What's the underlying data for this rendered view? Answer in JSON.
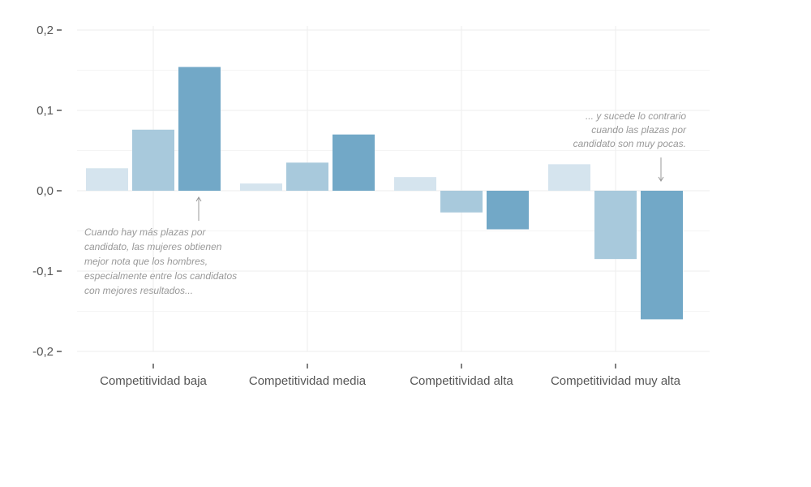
{
  "chart_data": {
    "type": "bar",
    "categories": [
      "Competitividad baja",
      "Competitividad media",
      "Competitividad alta",
      "Competitividad muy alta"
    ],
    "series": [
      {
        "values": [
          0.028,
          0.009,
          0.017,
          0.033
        ],
        "color": "#d5e4ee"
      },
      {
        "values": [
          0.076,
          0.035,
          -0.027,
          -0.085
        ],
        "color": "#a8c9dc"
      },
      {
        "values": [
          0.154,
          0.07,
          -0.048,
          -0.16
        ],
        "color": "#72a8c7"
      }
    ],
    "yticks": [
      0.2,
      0.1,
      0.0,
      -0.1,
      -0.2
    ],
    "ytick_labels": [
      "0,2",
      "0,1",
      "0,0",
      "-0,1",
      "-0,2"
    ],
    "ylim": [
      -0.2,
      0.2
    ],
    "grid": true,
    "title": "",
    "xlabel": "",
    "ylabel": "",
    "annotations": [
      {
        "category": "Competitividad baja",
        "lines": [
          "Cuando hay más plazas por",
          "candidato, las mujeres obtienen",
          "mejor nota que los hombres,",
          "especialmente entre los candidatos",
          "con mejores resultados..."
        ]
      },
      {
        "category": "Competitividad muy alta",
        "lines": [
          "... y sucede lo contrario",
          "cuando las plazas por",
          "candidato son muy pocas."
        ]
      }
    ]
  }
}
